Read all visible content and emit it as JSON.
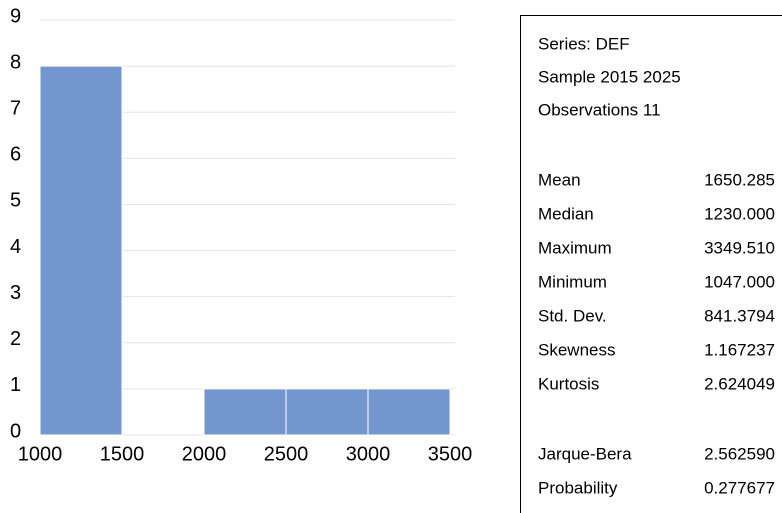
{
  "chart_data": {
    "type": "histogram",
    "bins": [
      1000,
      1500,
      2000,
      2500,
      3000,
      3500
    ],
    "counts": [
      8,
      0,
      1,
      1,
      1
    ],
    "color": "#7496cf",
    "xlim": [
      1000,
      3500
    ],
    "xticks": [
      1000,
      1500,
      2000,
      2500,
      3000,
      3500
    ],
    "ylim": [
      0,
      9
    ],
    "yticks": [
      0,
      1,
      2,
      3,
      4,
      5,
      6,
      7,
      8,
      9
    ],
    "grid": true
  },
  "stats_box": {
    "header": [
      "Series: DEF",
      "Sample 2015 2025",
      "Observations 11"
    ],
    "rows": [
      [
        "Mean",
        "1650.285"
      ],
      [
        "Median",
        "1230.000"
      ],
      [
        "Maximum",
        "3349.510"
      ],
      [
        "Minimum",
        "1047.000"
      ],
      [
        "Std. Dev.",
        "841.3794"
      ],
      [
        "Skewness",
        "1.167237"
      ],
      [
        "Kurtosis",
        "2.624049"
      ]
    ],
    "test_rows": [
      [
        "Jarque-Bera",
        "2.562590"
      ],
      [
        "Probability",
        "0.277677"
      ]
    ]
  }
}
